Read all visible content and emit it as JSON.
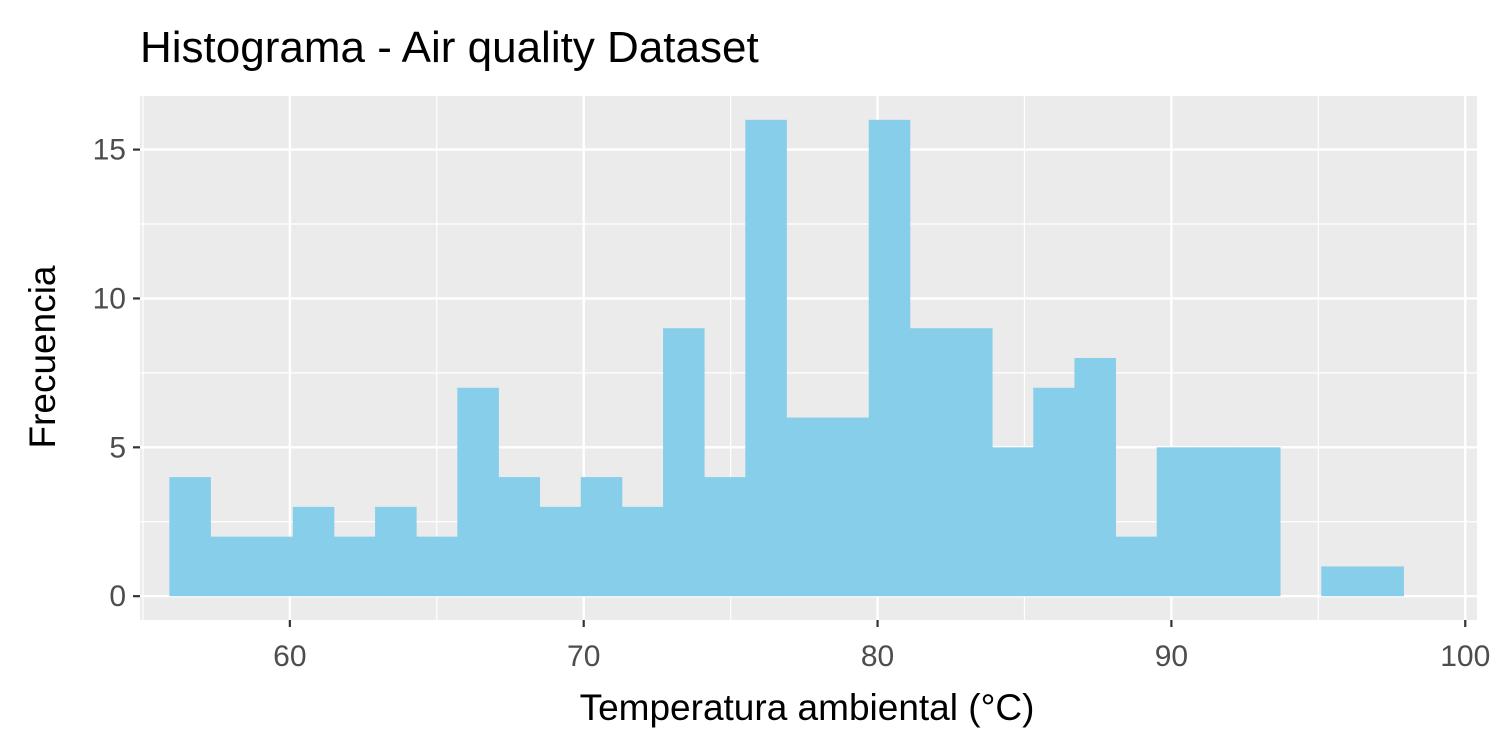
{
  "chart_data": {
    "type": "bar",
    "title": "Histograma - Air quality Dataset",
    "xlabel": "Temperatura ambiental (°C)",
    "ylabel": "Frecuencia",
    "xlim": [
      54.9,
      100.4
    ],
    "ylim": [
      -0.8,
      16.8
    ],
    "xticks": [
      60,
      70,
      80,
      90,
      100
    ],
    "xtick_labels": [
      "60",
      "70",
      "80",
      "90",
      "100"
    ],
    "yticks": [
      0,
      5,
      10,
      15
    ],
    "ytick_labels": [
      "0",
      "5",
      "10",
      "15"
    ],
    "bin_width": 1.4,
    "bin_starts": [
      55.9,
      57.3,
      58.7,
      60.1,
      61.5,
      62.9,
      64.3,
      65.7,
      67.1,
      68.5,
      69.9,
      71.3,
      72.7,
      74.1,
      75.5,
      76.9,
      78.3,
      79.7,
      81.1,
      82.5,
      83.9,
      85.3,
      86.7,
      88.1,
      89.5,
      90.9,
      92.3,
      93.7,
      95.1,
      96.5
    ],
    "values": [
      4,
      2,
      2,
      3,
      2,
      3,
      2,
      7,
      4,
      3,
      4,
      3,
      9,
      4,
      16,
      6,
      6,
      16,
      9,
      9,
      5,
      7,
      8,
      2,
      5,
      5,
      5,
      0,
      1,
      1
    ],
    "grid": true,
    "bar_color": "#87CEEB",
    "panel_background": "#EBEBEB",
    "grid_color": "#FFFFFF"
  }
}
